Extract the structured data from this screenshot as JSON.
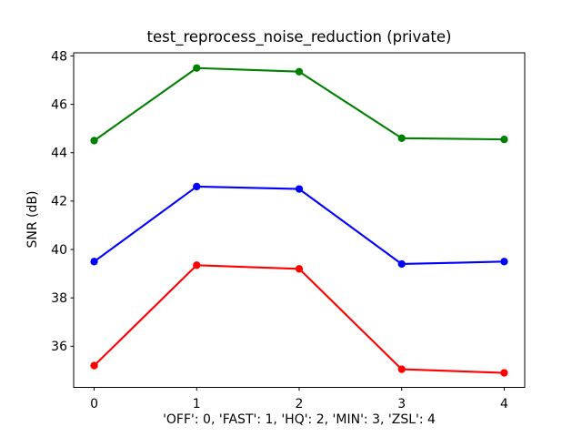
{
  "figure": {
    "background_color": "#ffffff",
    "axis_color": "#000000",
    "text_color": "#000000"
  },
  "chart_data": {
    "type": "line",
    "title": "test_reprocess_noise_reduction (private)",
    "xlabel": "'OFF': 0, 'FAST': 1, 'HQ': 2, 'MIN': 3, 'ZSL': 4",
    "ylabel": "SNR (dB)",
    "x": [
      0,
      1,
      2,
      3,
      4
    ],
    "xtick_labels": [
      "0",
      "1",
      "2",
      "3",
      "4"
    ],
    "ytick_values": [
      36,
      38,
      40,
      42,
      44,
      46,
      48
    ],
    "xlim": [
      -0.2,
      4.2
    ],
    "ylim": [
      34.3,
      48.13
    ],
    "grid": false,
    "legend": "none",
    "series": [
      {
        "name": "green-series",
        "color": "#008000",
        "marker": "circle",
        "values": [
          44.5,
          47.5,
          47.35,
          44.6,
          44.55
        ]
      },
      {
        "name": "blue-series",
        "color": "#0000ff",
        "marker": "circle",
        "values": [
          39.5,
          42.6,
          42.5,
          39.4,
          39.5
        ]
      },
      {
        "name": "red-series",
        "color": "#ff0000",
        "marker": "circle",
        "values": [
          35.2,
          39.35,
          39.2,
          35.05,
          34.9
        ]
      }
    ]
  }
}
